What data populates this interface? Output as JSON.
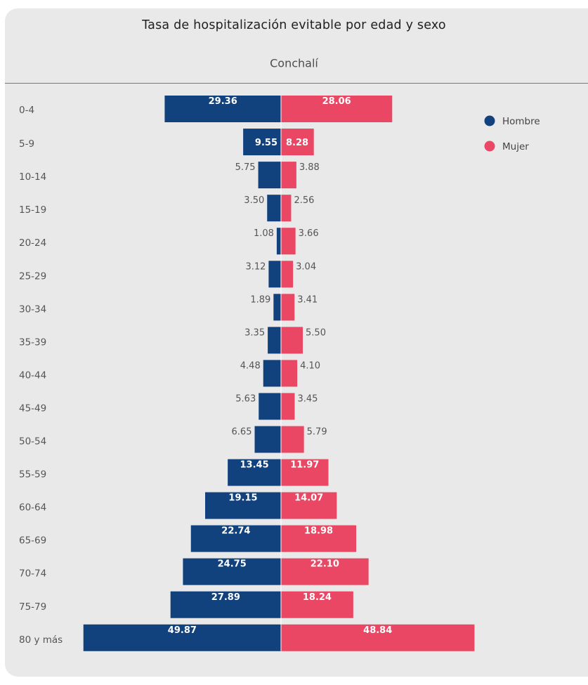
{
  "chart_data": {
    "type": "bar",
    "orientation": "horizontal",
    "layout": "population-pyramid",
    "title": "Tasa de hospitalización evitable por edad y sexo",
    "subtitle": "Conchalí",
    "categories": [
      "0-4",
      "5-9",
      "10-14",
      "15-19",
      "20-24",
      "25-29",
      "30-34",
      "35-39",
      "40-44",
      "45-49",
      "50-54",
      "55-59",
      "60-64",
      "65-69",
      "70-74",
      "75-79",
      "80 y más"
    ],
    "series": [
      {
        "name": "Hombre",
        "color": "#12427d",
        "side": "left",
        "values": [
          29.36,
          9.55,
          5.75,
          3.5,
          1.08,
          3.12,
          1.89,
          3.35,
          4.48,
          5.63,
          6.65,
          13.45,
          19.15,
          22.74,
          24.75,
          27.89,
          49.87
        ],
        "labels": [
          "29.36",
          "9.55",
          "5.75",
          "3.50",
          "1.08",
          "3.12",
          "1.89",
          "3.35",
          "4.48",
          "5.63",
          "6.65",
          "13.45",
          "19.15",
          "22.74",
          "24.75",
          "27.89",
          "49.87"
        ]
      },
      {
        "name": "Mujer",
        "color": "#e94763",
        "side": "right",
        "values": [
          28.06,
          8.28,
          3.88,
          2.56,
          3.66,
          3.04,
          3.41,
          5.5,
          4.1,
          3.45,
          5.79,
          11.97,
          14.07,
          18.98,
          22.1,
          18.24,
          48.84
        ],
        "labels": [
          "28.06",
          "8.28",
          "3.88",
          "2.56",
          "3.66",
          "3.04",
          "3.41",
          "5.50",
          "4.10",
          "3.45",
          "5.79",
          "11.97",
          "14.07",
          "18.98",
          "22.10",
          "18.24",
          "48.84"
        ]
      }
    ],
    "xlim": [
      -50,
      50
    ],
    "grid": false,
    "legend_position": "top-right",
    "inside_label_text_color": "#ffffff",
    "outside_label_text_color": "#555555"
  }
}
